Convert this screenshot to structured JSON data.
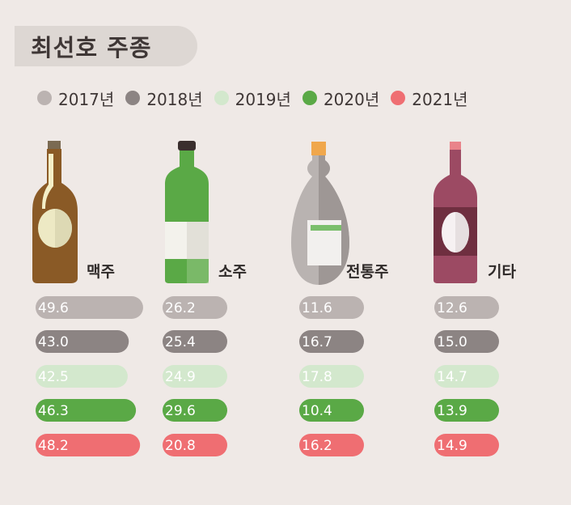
{
  "title": "최선호 주종",
  "legend": [
    {
      "label": "2017년",
      "color": "#bbb3b1"
    },
    {
      "label": "2018년",
      "color": "#8c8483"
    },
    {
      "label": "2019년",
      "color": "#d3e8cd"
    },
    {
      "label": "2020년",
      "color": "#5aa946"
    },
    {
      "label": "2021년",
      "color": "#ef6e72"
    }
  ],
  "chart_data": {
    "type": "bar",
    "title": "최선호 주종",
    "categories": [
      "맥주",
      "소주",
      "전통주",
      "기타"
    ],
    "series": [
      {
        "name": "2017년",
        "color": "#bbb3b1",
        "values": [
          49.6,
          26.2,
          11.6,
          12.6
        ]
      },
      {
        "name": "2018년",
        "color": "#8c8483",
        "values": [
          43.0,
          25.4,
          16.7,
          15.0
        ]
      },
      {
        "name": "2019년",
        "color": "#d3e8cd",
        "values": [
          42.5,
          24.9,
          17.8,
          14.7
        ]
      },
      {
        "name": "2020년",
        "color": "#5aa946",
        "values": [
          46.3,
          29.6,
          10.4,
          13.9
        ]
      },
      {
        "name": "2021년",
        "color": "#ef6e72",
        "values": [
          48.2,
          20.8,
          16.2,
          14.9
        ]
      }
    ],
    "value_labels": [
      [
        "49.6",
        "43.0",
        "42.5",
        "46.3",
        "48.2"
      ],
      [
        "26.2",
        "25.4",
        "24.9",
        "29.6",
        "20.8"
      ],
      [
        "11.6",
        "16.7",
        "17.8",
        "10.4",
        "16.2"
      ],
      [
        "12.6",
        "15.0",
        "14.7",
        "13.9",
        "14.9"
      ]
    ]
  },
  "icons": [
    "beer-bottle-icon",
    "soju-bottle-icon",
    "traditional-liquor-bottle-icon",
    "wine-bottle-icon"
  ]
}
